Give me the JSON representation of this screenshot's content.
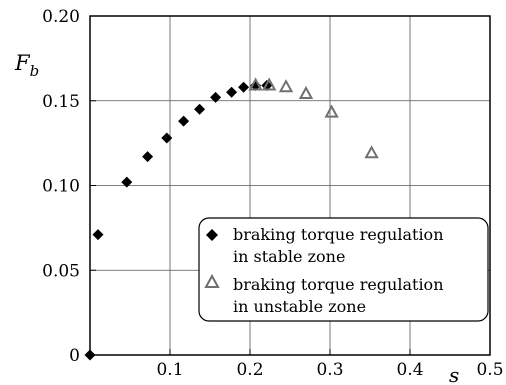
{
  "chart_data": {
    "type": "scatter",
    "xlabel": "s",
    "ylabel": "F",
    "ylabel_sub": "b",
    "xlim": [
      0,
      0.5
    ],
    "ylim": [
      0,
      0.2
    ],
    "x_ticks": [
      0.1,
      0.2,
      0.3,
      0.4,
      0.5
    ],
    "x_tick_labels": [
      "0.1",
      "0.2",
      "0.3",
      "0.4",
      "0.5"
    ],
    "y_ticks": [
      0,
      0.05,
      0.1,
      0.15,
      0.2
    ],
    "y_tick_labels": [
      "0",
      "0.05",
      "0.10",
      "0.15",
      "0.20"
    ],
    "grid": true,
    "legend_position": "bottom-right",
    "series": [
      {
        "name_lines": [
          "braking torque regulation",
          "in stable zone"
        ],
        "marker": "filled-diamond",
        "color": "#000000",
        "points": [
          [
            0.0,
            0.0
          ],
          [
            0.01,
            0.071
          ],
          [
            0.046,
            0.102
          ],
          [
            0.072,
            0.117
          ],
          [
            0.096,
            0.128
          ],
          [
            0.117,
            0.138
          ],
          [
            0.137,
            0.145
          ],
          [
            0.157,
            0.152
          ],
          [
            0.177,
            0.155
          ],
          [
            0.192,
            0.158
          ],
          [
            0.207,
            0.159
          ],
          [
            0.221,
            0.159
          ]
        ]
      },
      {
        "name_lines": [
          "braking torque regulation",
          "in unstable zone"
        ],
        "marker": "hollow-triangle",
        "color": "#707070",
        "points": [
          [
            0.207,
            0.159
          ],
          [
            0.224,
            0.159
          ],
          [
            0.245,
            0.158
          ],
          [
            0.27,
            0.154
          ],
          [
            0.302,
            0.143
          ],
          [
            0.352,
            0.119
          ]
        ]
      }
    ]
  }
}
